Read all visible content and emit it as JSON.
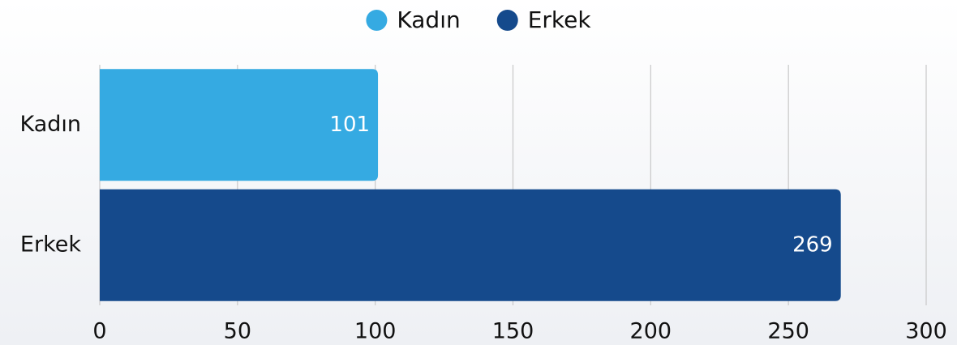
{
  "chart_data": {
    "type": "bar",
    "orientation": "horizontal",
    "categories": [
      "Kadın",
      "Erkek"
    ],
    "series": [
      {
        "name": "Kadın",
        "color": "#35aae2",
        "values": [
          101,
          null
        ]
      },
      {
        "name": "Erkek",
        "color": "#154a8c",
        "values": [
          null,
          269
        ]
      }
    ],
    "xlim": [
      0,
      300
    ],
    "xticks": [
      0,
      50,
      100,
      150,
      200,
      250,
      300
    ],
    "grid": true,
    "legend": "top"
  }
}
